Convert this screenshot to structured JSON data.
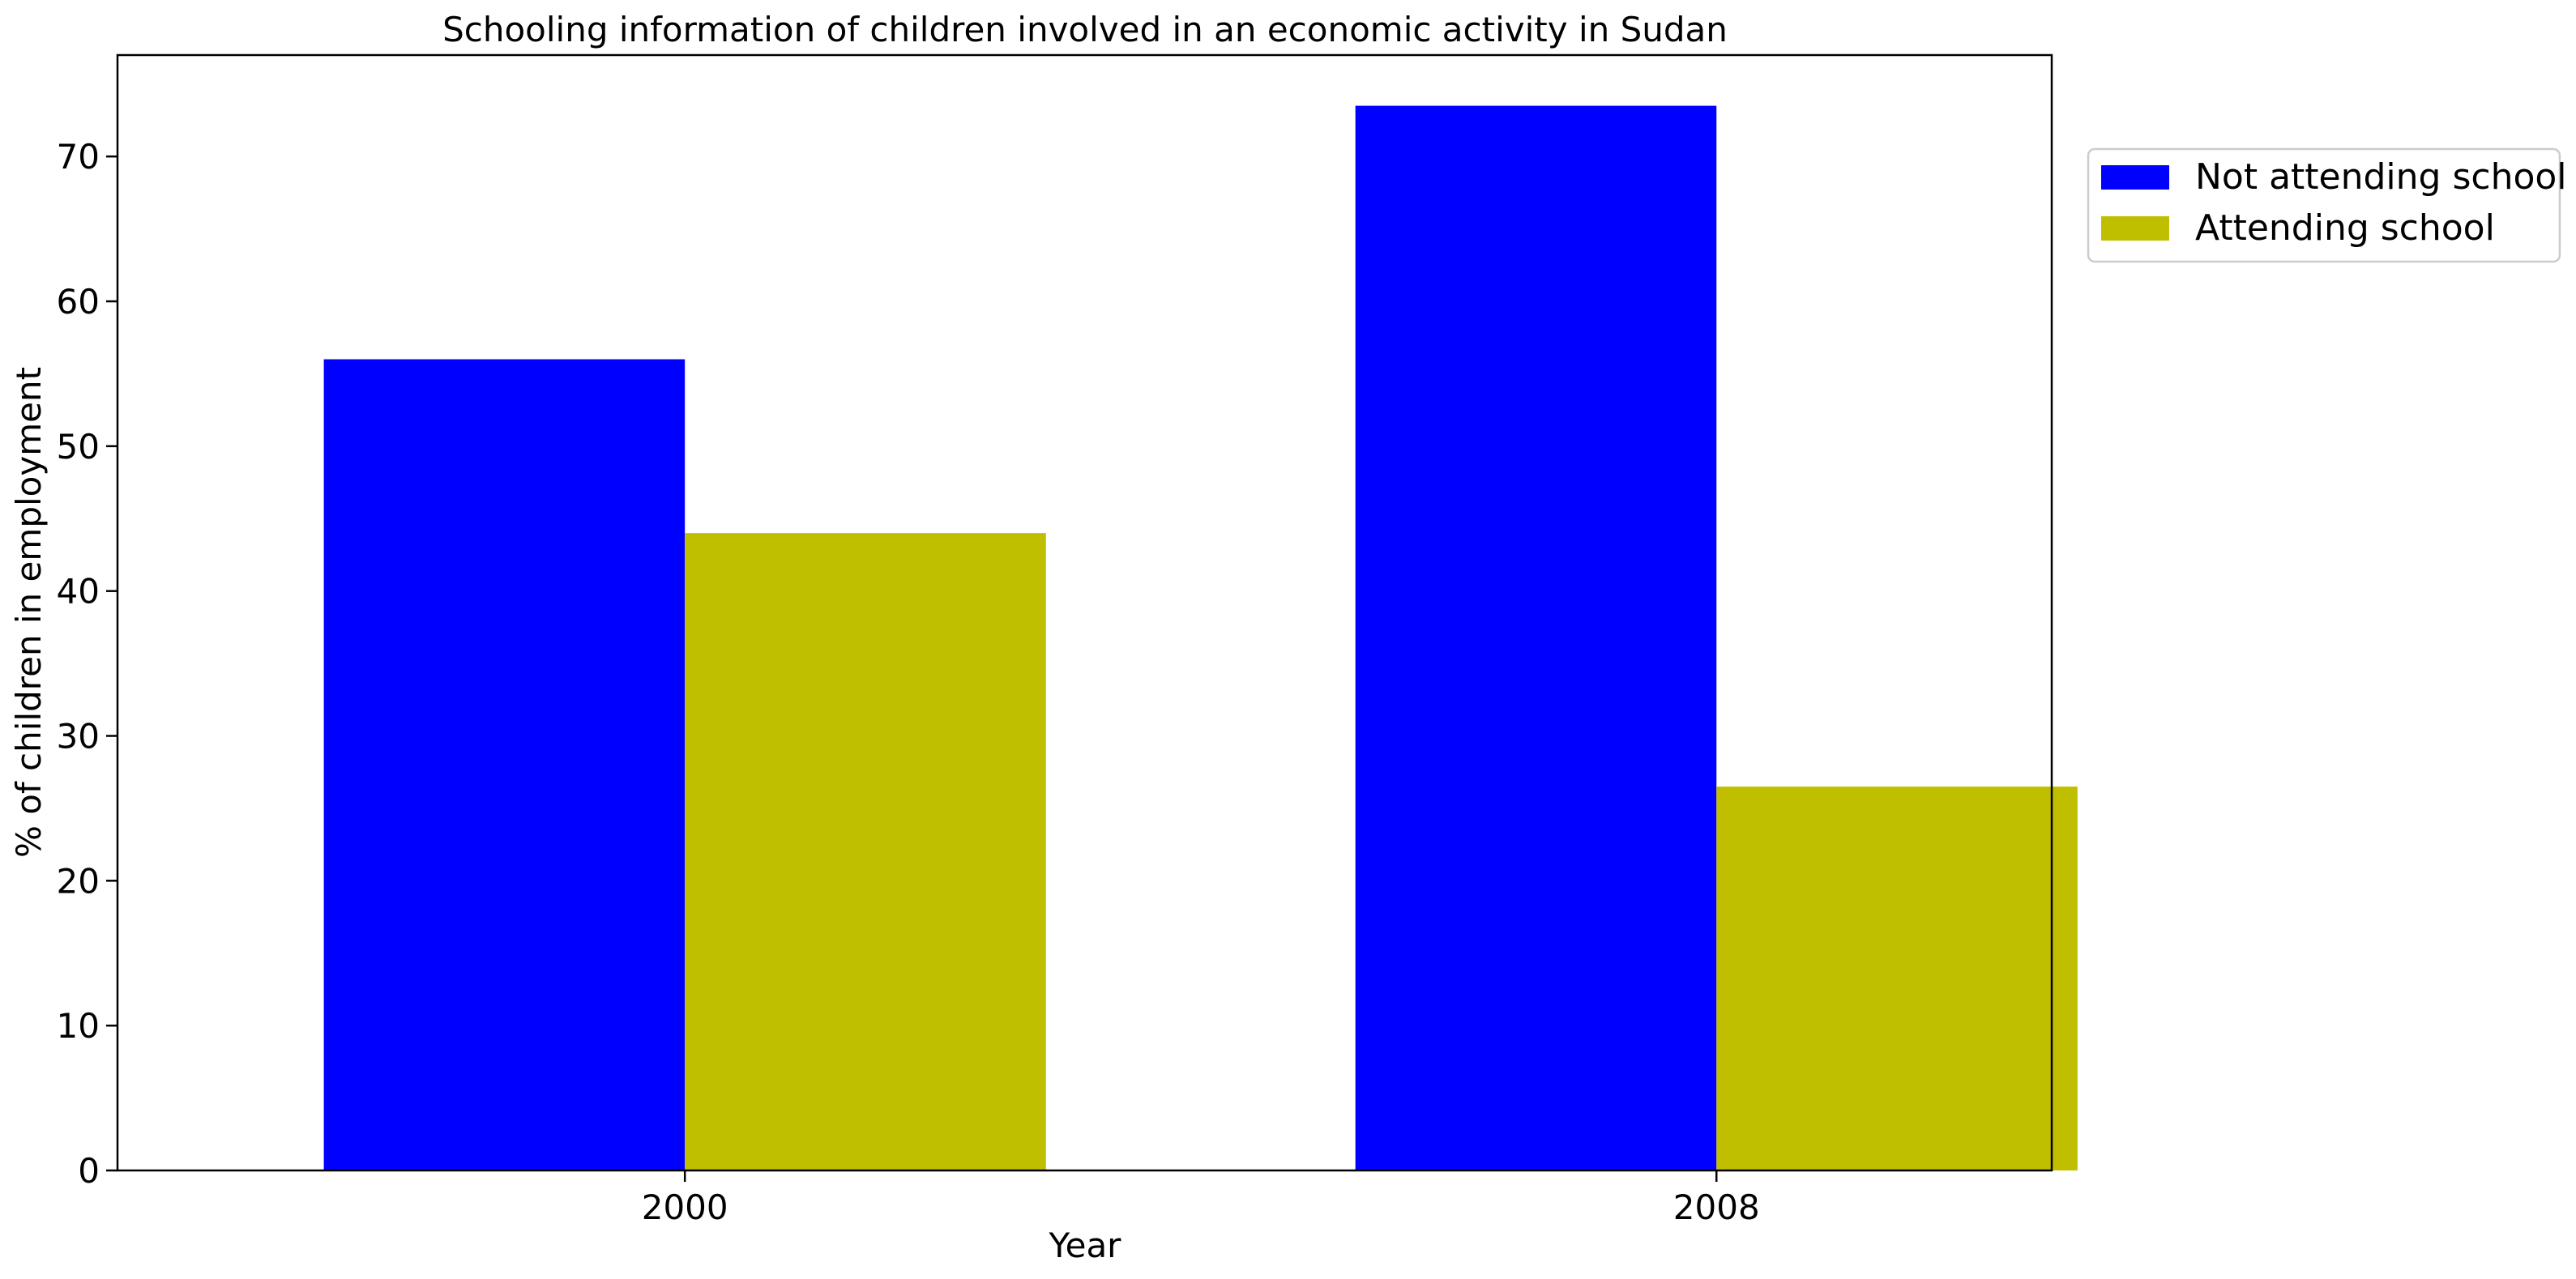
{
  "chart_data": {
    "type": "bar",
    "title": "Schooling information of children involved in an economic activity in Sudan",
    "xlabel": "Year",
    "ylabel": "% of children in employment",
    "categories": [
      "2000",
      "2008"
    ],
    "series": [
      {
        "name": "Not attending school",
        "color": "#0000ff",
        "values": [
          56.0,
          73.5
        ]
      },
      {
        "name": "Attending school",
        "color": "#bfbf00",
        "values": [
          44.0,
          26.5
        ]
      }
    ],
    "ylim": [
      0,
      77
    ],
    "yticks": [
      0,
      10,
      20,
      30,
      40,
      50,
      60,
      70
    ],
    "grid": false,
    "legend_position": "outside-top-right"
  }
}
